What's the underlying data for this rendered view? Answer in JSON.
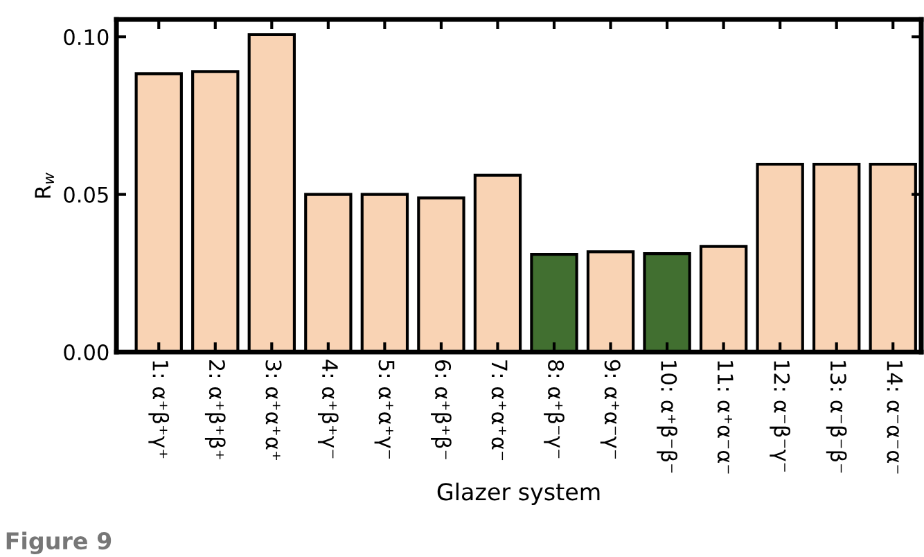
{
  "chart_data": {
    "type": "bar",
    "categories": [
      "1: α⁺β⁺γ⁺",
      "2: α⁺β⁺β⁺",
      "3: α⁺α⁺α⁺",
      "4: α⁺β⁺γ⁻",
      "5: α⁺α⁺γ⁻",
      "6: α⁺β⁺β⁻",
      "7: α⁺α⁺α⁻",
      "8: α⁺β⁻γ⁻",
      "9: α⁺α⁻γ⁻",
      "10: α⁺β⁻β⁻",
      "11: α⁺α⁻α⁻",
      "12: α⁻β⁻γ⁻",
      "13: α⁻β⁻β⁻",
      "14: α⁻α⁻α⁻"
    ],
    "values": [
      0.0883,
      0.089,
      0.1007,
      0.05,
      0.05,
      0.0489,
      0.0561,
      0.031,
      0.0318,
      0.0312,
      0.0335,
      0.0596,
      0.0596,
      0.0596
    ],
    "colors": [
      "#f9d3b4",
      "#f9d3b4",
      "#f9d3b4",
      "#f9d3b4",
      "#f9d3b4",
      "#f9d3b4",
      "#f9d3b4",
      "#416f30",
      "#f9d3b4",
      "#416f30",
      "#f9d3b4",
      "#f9d3b4",
      "#f9d3b4",
      "#f9d3b4"
    ],
    "xlabel": "Glazer system",
    "ylabel": "R$_{w}$",
    "ylim": [
      0,
      0.1055
    ],
    "yticks": [
      {
        "value": 0,
        "label": "0.00"
      },
      {
        "value": 0.05,
        "label": "0.05"
      },
      {
        "value": 0.1,
        "label": "0.10"
      }
    ],
    "grid": false,
    "legend": false,
    "annotations": [
      "Figure 9"
    ]
  }
}
